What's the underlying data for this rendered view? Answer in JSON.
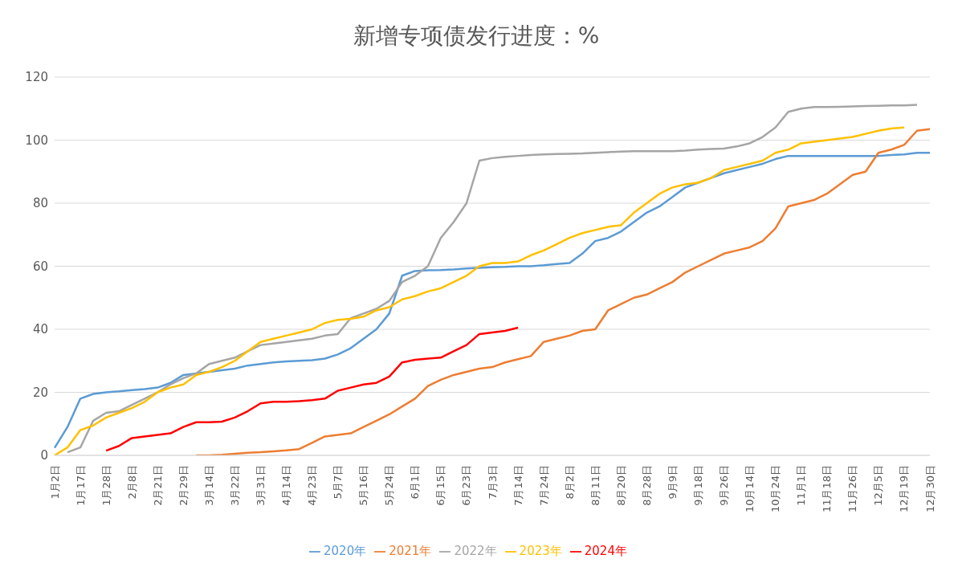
{
  "chart_data": {
    "type": "line",
    "title": "新增专项债发行进度：%",
    "categories": [
      "1月2日",
      null,
      "1月17日",
      null,
      "1月28日",
      null,
      "2月8日",
      null,
      "2月21日",
      null,
      "2月29日",
      null,
      "3月14日",
      null,
      "3月22日",
      null,
      "3月31日",
      null,
      "4月14日",
      null,
      "4月23日",
      null,
      "5月7日",
      null,
      "5月16日",
      null,
      "5月24日",
      null,
      "6月1日",
      null,
      "6月15日",
      null,
      "6月23日",
      null,
      "7月3日",
      null,
      "7月14日",
      null,
      "7月24日",
      null,
      "8月2日",
      null,
      "8月11日",
      null,
      "8月20日",
      null,
      "8月28日",
      null,
      "9月9日",
      null,
      "9月18日",
      null,
      "9月26日",
      null,
      "10月14日",
      null,
      "10月24日",
      null,
      "11月1日",
      null,
      "11月18日",
      null,
      "11月26日",
      null,
      "12月5日",
      null,
      "12月19日",
      null,
      "12月30日"
    ],
    "series": [
      {
        "name": "2020年",
        "color": "#5b9bd5",
        "values": [
          2.4,
          9,
          18,
          19.5,
          20,
          20.3,
          20.7,
          21,
          21.5,
          23,
          25.5,
          26,
          26.5,
          27,
          27.5,
          28.5,
          29,
          29.5,
          29.8,
          30,
          30.2,
          30.7,
          32,
          34,
          37,
          40,
          45,
          57,
          58.5,
          58.7,
          58.8,
          59,
          59.3,
          59.5,
          59.7,
          59.8,
          60,
          60,
          60.3,
          60.7,
          61,
          64,
          68,
          69,
          71,
          74,
          77,
          79,
          82,
          85,
          86.5,
          88,
          89.5,
          90.5,
          91.5,
          92.5,
          94,
          95,
          95,
          95,
          95,
          95,
          95,
          95,
          95,
          95.3,
          95.5,
          96,
          96
        ]
      },
      {
        "name": "2021年",
        "color": "#ed7d31",
        "values": [
          null,
          null,
          null,
          null,
          null,
          null,
          null,
          null,
          null,
          null,
          null,
          0,
          0,
          0.2,
          0.5,
          0.8,
          1,
          1.3,
          1.6,
          2,
          4,
          6,
          6.5,
          7,
          9,
          11,
          13,
          15.5,
          18,
          22,
          24,
          25.5,
          26.5,
          27.5,
          28,
          29.5,
          30.5,
          31.5,
          36,
          37,
          38,
          39.5,
          40,
          46,
          48,
          50,
          51,
          53,
          55,
          58,
          60,
          62,
          64,
          65,
          66,
          68,
          72,
          79,
          80,
          81,
          83,
          86,
          89,
          90,
          96,
          97,
          98.5,
          103,
          103.5
        ]
      },
      {
        "name": "2022年",
        "color": "#a5a5a5",
        "values": [
          null,
          1,
          2.5,
          11,
          13.5,
          14,
          16,
          18,
          20,
          22.5,
          24.5,
          26,
          29,
          30,
          31,
          33,
          35,
          35.5,
          36,
          36.5,
          37,
          38,
          38.5,
          43.5,
          45,
          46.5,
          49,
          55,
          57,
          60,
          69,
          74,
          80,
          93.5,
          94.3,
          94.7,
          95,
          95.3,
          95.5,
          95.6,
          95.7,
          95.8,
          96,
          96.2,
          96.4,
          96.5,
          96.5,
          96.5,
          96.5,
          96.7,
          97,
          97.2,
          97.3,
          98,
          99,
          101,
          104,
          109,
          110,
          110.5,
          110.5,
          110.6,
          110.7,
          110.8,
          110.9,
          111,
          111,
          111.2,
          null
        ]
      },
      {
        "name": "2023年",
        "color": "#ffc000",
        "values": [
          0,
          2.5,
          8,
          9.5,
          12,
          13.5,
          15,
          17,
          20,
          21.5,
          22.5,
          25.5,
          26.5,
          28,
          30,
          33,
          36,
          37,
          38,
          39,
          40,
          42,
          43,
          43.3,
          44,
          46,
          47,
          49.5,
          50.5,
          52,
          53,
          55,
          57,
          60,
          61,
          61,
          61.5,
          63.5,
          65,
          67,
          69,
          70.5,
          71.5,
          72.5,
          73,
          77,
          80,
          83,
          85,
          86,
          86.5,
          88,
          90.5,
          91.5,
          92.5,
          93.5,
          96,
          97,
          99,
          99.5,
          100,
          100.5,
          101,
          102,
          103,
          103.7,
          104,
          null,
          null
        ]
      },
      {
        "name": "2024年",
        "color": "#ff0000",
        "values": [
          null,
          null,
          null,
          null,
          1.5,
          3,
          5.5,
          6,
          6.5,
          7,
          9,
          10.5,
          10.5,
          10.7,
          12,
          14,
          16.5,
          17,
          17,
          17.2,
          17.5,
          18,
          20.5,
          21.5,
          22.5,
          23,
          25,
          29.5,
          30.3,
          30.7,
          31,
          33,
          35,
          38.5,
          39,
          39.5,
          40.5,
          null,
          null,
          null,
          null,
          null,
          null,
          null,
          null,
          null,
          null,
          null,
          null,
          null,
          null,
          null,
          null,
          null,
          null,
          null,
          null,
          null,
          null,
          null,
          null,
          null,
          null,
          null,
          null,
          null,
          null,
          null,
          null
        ]
      }
    ],
    "ylim": [
      0,
      120
    ],
    "yticks": [
      0,
      20,
      40,
      60,
      80,
      100,
      120
    ],
    "grid": "y",
    "legend": "bottom",
    "marker": "none",
    "line_style": "solid"
  }
}
